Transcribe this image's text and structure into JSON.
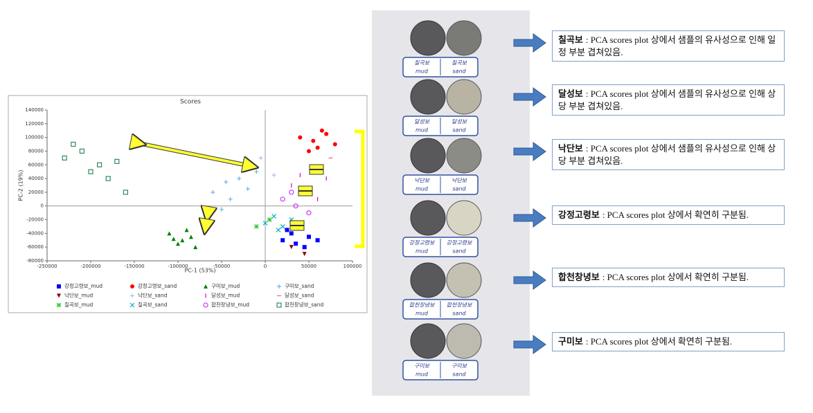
{
  "chart_data": {
    "type": "scatter",
    "title": "Scores",
    "xlabel": "PC-1 (53%)",
    "ylabel": "PC-2 (19%)",
    "xlim": [
      -250000,
      100000
    ],
    "ylim": [
      -80000,
      140000
    ],
    "xticks": [
      -250000,
      -200000,
      -150000,
      -100000,
      -50000,
      0,
      50000,
      100000
    ],
    "yticks": [
      -80000,
      -60000,
      -40000,
      -20000,
      0,
      20000,
      40000,
      60000,
      80000,
      100000,
      120000,
      140000
    ],
    "series": [
      {
        "name": "강정고령보_mud",
        "color": "#0000ff",
        "marker": "square",
        "x": [
          20000,
          35000,
          50000,
          30000,
          60000,
          45000,
          25000
        ],
        "values": [
          -50000,
          -55000,
          -45000,
          -40000,
          -50000,
          -60000,
          -35000
        ]
      },
      {
        "name": "강정고령보_sand",
        "color": "#ff0000",
        "marker": "circle",
        "x": [
          40000,
          55000,
          70000,
          60000,
          80000,
          50000,
          65000
        ],
        "values": [
          100000,
          95000,
          105000,
          85000,
          90000,
          80000,
          110000
        ]
      },
      {
        "name": "구미보_mud",
        "color": "#008000",
        "marker": "triangle",
        "x": [
          -110000,
          -95000,
          -85000,
          -100000,
          -80000,
          -90000,
          -105000
        ],
        "values": [
          -40000,
          -50000,
          -45000,
          -55000,
          -60000,
          -35000,
          -48000
        ]
      },
      {
        "name": "구미보_sand",
        "color": "#6fb0e8",
        "marker": "plus",
        "x": [
          -60000,
          -45000,
          -30000,
          -40000,
          -20000,
          -50000,
          -10000
        ],
        "values": [
          20000,
          35000,
          40000,
          10000,
          25000,
          -5000,
          50000
        ]
      },
      {
        "name": "낙단보_mud",
        "color": "#8b0000",
        "marker": "triangle-down",
        "x": [
          30000,
          45000
        ],
        "values": [
          -60000,
          -70000
        ]
      },
      {
        "name": "낙단보_sand",
        "color": "#a8c4ec",
        "marker": "plus",
        "x": [
          -20000,
          -5000,
          10000
        ],
        "values": [
          60000,
          70000,
          45000
        ]
      },
      {
        "name": "달성보_mud",
        "color": "#cc00cc",
        "marker": "bar",
        "x": [
          30000,
          50000,
          70000,
          40000,
          60000
        ],
        "values": [
          30000,
          20000,
          40000,
          45000,
          10000
        ]
      },
      {
        "name": "달성보_sand",
        "color": "#e06090",
        "marker": "dash",
        "x": [
          60000,
          75000,
          55000
        ],
        "values": [
          60000,
          70000,
          55000
        ]
      },
      {
        "name": "칠곡보_mud",
        "color": "#33cc33",
        "marker": "star",
        "x": [
          -10000,
          5000
        ],
        "values": [
          -30000,
          -20000
        ]
      },
      {
        "name": "칠곡보_sand",
        "color": "#00b0c0",
        "marker": "cross",
        "x": [
          0,
          15000,
          30000,
          20000,
          10000
        ],
        "values": [
          -25000,
          -35000,
          -20000,
          -30000,
          -15000
        ]
      },
      {
        "name": "합천창녕보_mud",
        "color": "#cc33ff",
        "marker": "circle-open",
        "x": [
          20000,
          35000,
          50000,
          30000
        ],
        "values": [
          10000,
          0,
          -10000,
          20000
        ]
      },
      {
        "name": "합천창녕보_sand",
        "color": "#2e8b57",
        "marker": "square-open",
        "x": [
          -230000,
          -210000,
          -190000,
          -200000,
          -180000,
          -220000,
          -160000,
          -170000
        ],
        "values": [
          70000,
          80000,
          60000,
          50000,
          40000,
          90000,
          20000,
          65000
        ]
      }
    ]
  },
  "photo": {
    "rows": [
      {
        "site": "칠곡보",
        "left": "mud",
        "right": "sand"
      },
      {
        "site": "달성보",
        "left": "mud",
        "right": "sand"
      },
      {
        "site": "낙단보",
        "left": "mud",
        "right": "sand"
      },
      {
        "site": "강정고령보",
        "left": "mud",
        "right": "sand"
      },
      {
        "site": "합천창녕보",
        "left": "mud",
        "right": "sand"
      },
      {
        "site": "구미보",
        "left": "mud",
        "right": "sand"
      }
    ]
  },
  "notes": [
    {
      "name": "칠곡보",
      "text": ": PCA scores plot 상에서 샘플의 유사성으로 인해 일정 부분 겹쳐있음."
    },
    {
      "name": "달성보",
      "text": ": PCA scores plot 상에서 샘플의 유사성으로 인해 상당 부분 겹쳐있음."
    },
    {
      "name": "낙단보",
      "text": ": PCA scores plot 상에서 샘플의 유사성으로 인해 상당 부분 겹쳐있음."
    },
    {
      "name": "강정고령보",
      "text": ": PCA scores plot 상에서 확연히 구분됨."
    },
    {
      "name": "합천창녕보",
      "text": ": PCA scores plot 상에서 확연히 구분됨."
    },
    {
      "name": "구미보",
      "text": ": PCA scores plot 상에서 확연히 구분됨."
    }
  ]
}
